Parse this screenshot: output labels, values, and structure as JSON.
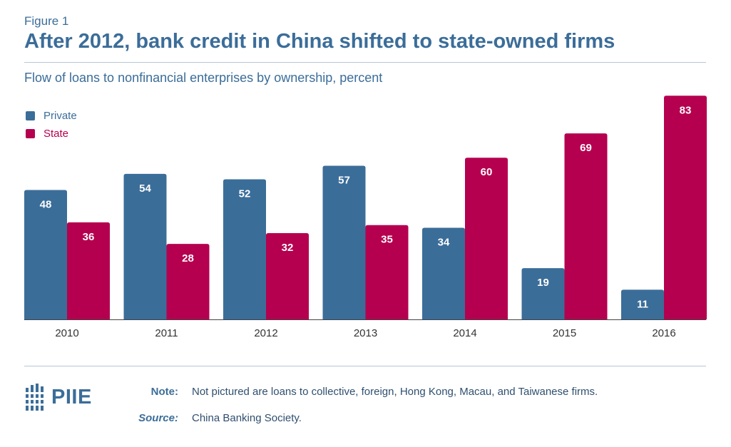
{
  "header": {
    "figure_label": "Figure 1",
    "title": "After 2012, bank credit in China shifted to state-owned firms",
    "subtitle": "Flow of loans to nonfinancial enterprises by ownership, percent"
  },
  "colors": {
    "private": "#3b6d99",
    "state": "#b5004f",
    "title": "#3b6d99",
    "axis": "#333333"
  },
  "chart_data": {
    "type": "bar",
    "title": "After 2012, bank credit in China shifted to state-owned firms",
    "subtitle": "Flow of loans to nonfinancial enterprises by ownership, percent",
    "categories": [
      "2010",
      "2011",
      "2012",
      "2013",
      "2014",
      "2015",
      "2016"
    ],
    "series": [
      {
        "name": "Private",
        "values": [
          48,
          54,
          52,
          57,
          34,
          19,
          11
        ]
      },
      {
        "name": "State",
        "values": [
          36,
          28,
          32,
          35,
          60,
          69,
          83
        ]
      }
    ],
    "xlabel": "",
    "ylabel": "",
    "ylim": [
      0,
      85
    ],
    "grid": false,
    "legend_position": "top-left",
    "data_labels": true
  },
  "footer": {
    "logo_text": "PIIE",
    "note_label": "Note:",
    "note_text": "Not pictured are loans to collective, foreign, Hong Kong, Macau, and Taiwanese firms.",
    "source_label": "Source:",
    "source_text": "China Banking Society."
  }
}
